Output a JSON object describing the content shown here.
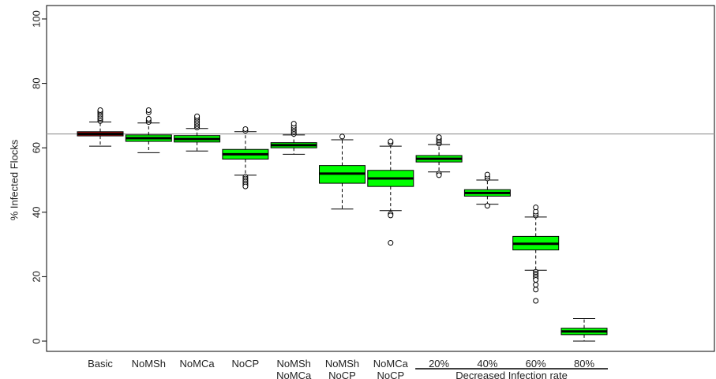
{
  "chart_data": {
    "type": "boxplot",
    "ylabel": "% Infected Flocks",
    "ylim": [
      0,
      100
    ],
    "yticks": [
      0,
      20,
      40,
      60,
      80,
      100
    ],
    "reference_line": 64.3,
    "group_label": "Decreased Infection rate",
    "grid": false,
    "categories": [
      {
        "label": [
          "Basic"
        ],
        "color": "#cc1111",
        "min": 60.5,
        "q1": 63.7,
        "median": 64.3,
        "q3": 65.0,
        "max": 68.0,
        "outliers": [
          68.3,
          68.8,
          69.2,
          69.8,
          70.3,
          70.8,
          71.3,
          71.7
        ]
      },
      {
        "label": [
          "NoMSh"
        ],
        "color": "#00ff00",
        "min": 58.5,
        "q1": 62.0,
        "median": 63.0,
        "q3": 64.0,
        "max": 67.7,
        "outliers": [
          68.0,
          68.5,
          69.0,
          71.0,
          71.7
        ]
      },
      {
        "label": [
          "NoMCa"
        ],
        "color": "#00ff00",
        "min": 59.0,
        "q1": 61.8,
        "median": 62.7,
        "q3": 63.8,
        "max": 66.0,
        "outliers": [
          66.3,
          66.8,
          67.3,
          67.8,
          68.3,
          68.8,
          69.3,
          69.8
        ]
      },
      {
        "label": [
          "NoCP"
        ],
        "color": "#00ff00",
        "min": 51.5,
        "q1": 56.5,
        "median": 58.0,
        "q3": 59.5,
        "max": 65.0,
        "outliers": [
          51.0,
          50.5,
          50.0,
          49.5,
          49.0,
          48.5,
          48.0,
          65.3,
          65.8
        ]
      },
      {
        "label": [
          "NoMSh",
          "NoMCa"
        ],
        "color": "#00ff00",
        "min": 58.0,
        "q1": 60.0,
        "median": 60.8,
        "q3": 61.6,
        "max": 64.0,
        "outliers": [
          64.3,
          64.8,
          65.3,
          65.8,
          66.3,
          66.8,
          67.5
        ]
      },
      {
        "label": [
          "NoMSh",
          "NoCP"
        ],
        "color": "#00ff00",
        "min": 41.0,
        "q1": 49.0,
        "median": 52.0,
        "q3": 54.5,
        "max": 62.5,
        "outliers": [
          63.5
        ]
      },
      {
        "label": [
          "NoMCa",
          "NoCP"
        ],
        "color": "#00ff00",
        "min": 40.5,
        "q1": 48.0,
        "median": 50.5,
        "q3": 53.0,
        "max": 60.5,
        "outliers": [
          39.5,
          39.0,
          30.5,
          61.5,
          62.0
        ]
      },
      {
        "label": [
          "20%"
        ],
        "color": "#00ff00",
        "min": 52.5,
        "q1": 55.6,
        "median": 56.6,
        "q3": 57.6,
        "max": 61.0,
        "outliers": [
          52.0,
          51.5,
          61.3,
          61.8,
          62.3,
          62.8,
          63.3
        ]
      },
      {
        "label": [
          "40%"
        ],
        "color": "#00ff00",
        "min": 42.5,
        "q1": 45.0,
        "median": 46.0,
        "q3": 47.0,
        "max": 50.0,
        "outliers": [
          42.0,
          50.5,
          51.0,
          51.7
        ]
      },
      {
        "label": [
          "60%"
        ],
        "color": "#00ff00",
        "min": 22.0,
        "q1": 28.3,
        "median": 30.2,
        "q3": 32.5,
        "max": 38.5,
        "outliers": [
          21.5,
          21.0,
          20.5,
          20.0,
          19.5,
          19.0,
          17.5,
          16.0,
          12.5,
          39.0,
          39.5,
          40.2,
          41.5
        ]
      },
      {
        "label": [
          "80%"
        ],
        "color": "#00ff00",
        "min": 0.0,
        "q1": 2.0,
        "median": 3.0,
        "q3": 4.0,
        "max": 7.0,
        "outliers": []
      }
    ]
  }
}
